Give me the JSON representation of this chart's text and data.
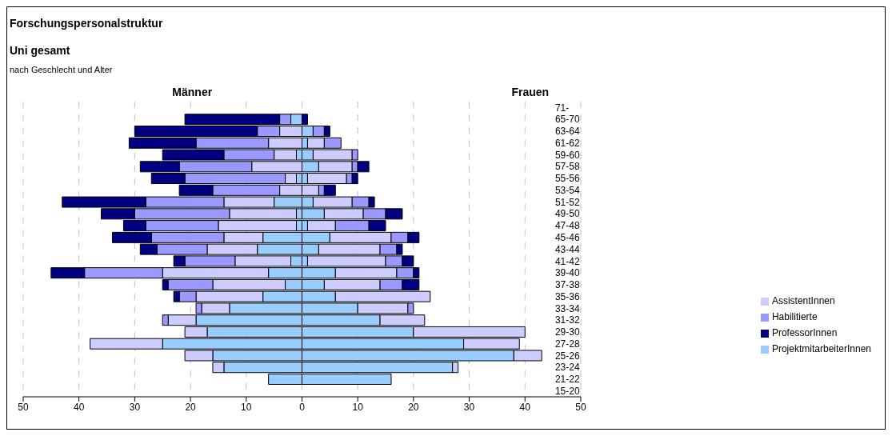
{
  "chart_data": {
    "type": "bar",
    "orientation": "horizontal",
    "stacked": true,
    "title": "Forschungspersonalstruktur",
    "subtitle": "Uni gesamt",
    "annotations": [
      "nach Geschlecht und Alter",
      "Männer",
      "Frauen"
    ],
    "categories": [
      "71-",
      "65-70",
      "63-64",
      "61-62",
      "59-60",
      "57-58",
      "55-56",
      "53-54",
      "51-52",
      "49-50",
      "47-48",
      "45-46",
      "43-44",
      "41-42",
      "39-40",
      "37-38",
      "35-36",
      "33-34",
      "31-32",
      "29-30",
      "27-28",
      "25-26",
      "23-24",
      "21-22",
      "15-20"
    ],
    "series": [
      {
        "color": "#99ccff",
        "values": [
          0,
          -2,
          0,
          0,
          -1,
          0,
          -1,
          0,
          -5,
          -1,
          -1,
          -7,
          -8,
          -2,
          -6,
          -3,
          -7,
          -13,
          -19,
          -17,
          -25,
          -16,
          -14,
          -6,
          0
        ]
      },
      {
        "name": "ProjektmitarbeiterInnen",
        "color": "#99ccff",
        "values": [
          0,
          0,
          2,
          1,
          2,
          3,
          1,
          0,
          2,
          4,
          1,
          5,
          3,
          1,
          6,
          4,
          6,
          10,
          14,
          20,
          29,
          38,
          27,
          16,
          0
        ]
      },
      {
        "color": "#ccccff",
        "values": [
          0,
          0,
          -4,
          -6,
          -4,
          -9,
          -2,
          -4,
          -9,
          -12,
          -14,
          -7,
          -9,
          -10,
          -19,
          -13,
          -12,
          -5,
          -5,
          -4,
          -13,
          -5,
          -2,
          0,
          0
        ]
      },
      {
        "name": "AssistentInnen",
        "color": "#ccccff",
        "values": [
          0,
          0,
          0,
          3,
          7,
          6,
          7,
          3,
          7,
          7,
          5,
          11,
          11,
          14,
          11,
          10,
          17,
          9,
          8,
          20,
          10,
          5,
          1,
          0,
          0
        ]
      },
      {
        "color": "#9999ff",
        "values": [
          0,
          -2,
          -4,
          -13,
          -9,
          -13,
          -18,
          -12,
          -14,
          -17,
          -13,
          -13,
          -9,
          -9,
          -14,
          -8,
          -3,
          -1,
          -1,
          0,
          0,
          0,
          0,
          0,
          0
        ]
      },
      {
        "name": "Habilitierte",
        "color": "#9999ff",
        "values": [
          0,
          0,
          2,
          3,
          1,
          1,
          1,
          1,
          3,
          4,
          6,
          3,
          3,
          3,
          3,
          4,
          0,
          1,
          0,
          0,
          0,
          0,
          0,
          0,
          0
        ]
      },
      {
        "color": "#000080",
        "values": [
          0,
          -17,
          -22,
          -12,
          -11,
          -7,
          -6,
          -6,
          -15,
          -6,
          -4,
          -7,
          -3,
          -2,
          -6,
          -1,
          -1,
          0,
          0,
          0,
          0,
          0,
          0,
          0,
          0
        ]
      },
      {
        "name": "ProfessorInnen",
        "color": "#000080",
        "values": [
          0,
          1,
          1,
          0,
          0,
          2,
          1,
          2,
          1,
          3,
          3,
          2,
          1,
          2,
          1,
          3,
          0,
          0,
          0,
          0,
          0,
          0,
          0,
          0,
          0
        ]
      }
    ],
    "xlim": [
      -50,
      50
    ],
    "xticks": [
      {
        "value": -50,
        "label": "50"
      },
      {
        "value": -40,
        "label": "40"
      },
      {
        "value": -30,
        "label": "30"
      },
      {
        "value": -20,
        "label": "20"
      },
      {
        "value": -10,
        "label": "10"
      },
      0,
      10,
      20,
      30,
      40,
      50
    ],
    "grid": "x",
    "legend": "right"
  }
}
